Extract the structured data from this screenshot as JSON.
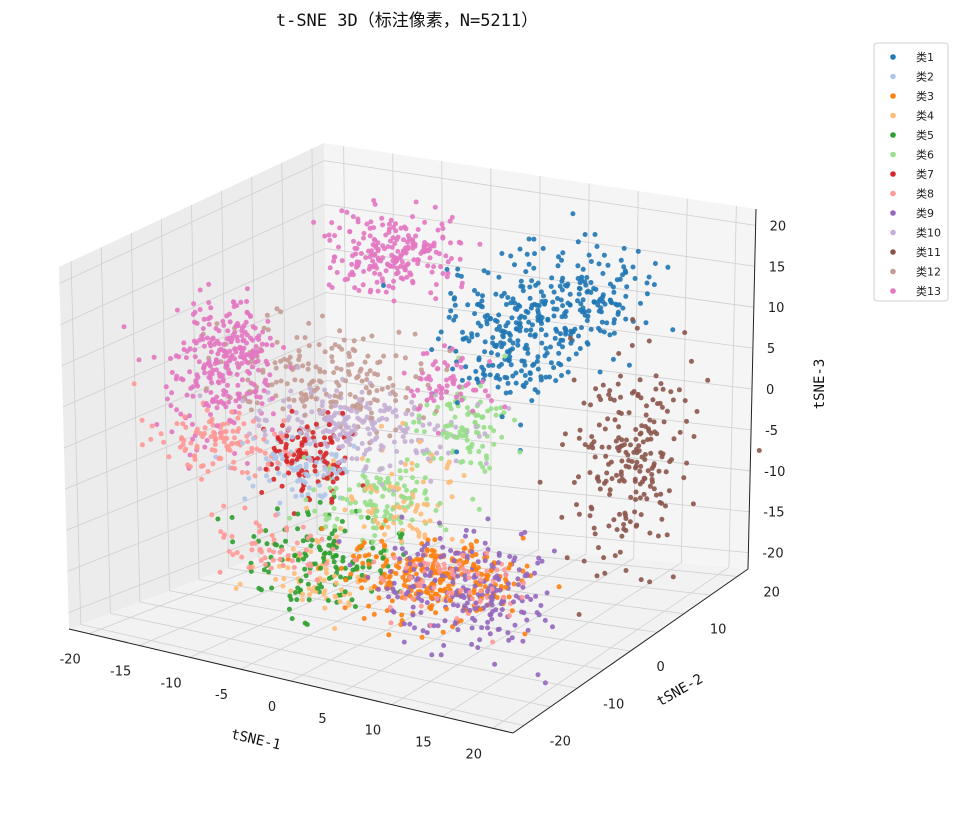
{
  "chart_data": {
    "type": "scatter",
    "projection": "3d",
    "title": "t-SNE 3D（标注像素，N=5211）",
    "xlabel": "tSNE-1",
    "ylabel": "tSNE-2",
    "zlabel": "tSNE-3",
    "xlim": [
      -22,
      22
    ],
    "ylim": [
      -22,
      22
    ],
    "zlim": [
      -22,
      22
    ],
    "xticks": [
      -20,
      -15,
      -10,
      -5,
      0,
      5,
      10,
      15,
      20
    ],
    "yticks": [
      -20,
      -10,
      0,
      10,
      20
    ],
    "zticks": [
      -20,
      -15,
      -10,
      -5,
      0,
      5,
      10,
      15,
      20
    ],
    "grid": true,
    "legend_position": "upper-right-outside",
    "series": [
      {
        "name": "类1",
        "color": "#1f77b4",
        "clusters": [
          [
            4,
            10,
            8,
            3,
            3,
            4,
            240
          ],
          [
            10,
            12,
            13,
            3,
            3,
            3,
            160
          ]
        ]
      },
      {
        "name": "类2",
        "color": "#aec7e8",
        "clusters": [
          [
            -10,
            -2,
            -6,
            3,
            2,
            2,
            80
          ]
        ]
      },
      {
        "name": "类3",
        "color": "#ff7f0e",
        "clusters": [
          [
            6,
            -7,
            -14,
            4,
            3,
            2,
            260
          ]
        ]
      },
      {
        "name": "类4",
        "color": "#ffbb78",
        "clusters": [
          [
            -1,
            -2,
            -8,
            3,
            3,
            3,
            80
          ],
          [
            -5,
            -7,
            -17,
            3,
            2,
            2,
            60
          ]
        ]
      },
      {
        "name": "类5",
        "color": "#2ca02c",
        "clusters": [
          [
            -6,
            -6,
            -15,
            3,
            3,
            3,
            140
          ]
        ]
      },
      {
        "name": "类6",
        "color": "#98df8a",
        "clusters": [
          [
            -3,
            -1,
            -9,
            3,
            3,
            2,
            120
          ],
          [
            2,
            6,
            -1,
            2,
            2,
            3,
            100
          ]
        ]
      },
      {
        "name": "类7",
        "color": "#d62728",
        "clusters": [
          [
            -10,
            -1,
            -5,
            2,
            2,
            2,
            110
          ]
        ]
      },
      {
        "name": "类8",
        "color": "#ff9896",
        "clusters": [
          [
            -17,
            -4,
            -4,
            3,
            2,
            2,
            120
          ],
          [
            10,
            -12,
            -12,
            4,
            2,
            2,
            70
          ],
          [
            -9,
            -9,
            -13,
            3,
            2,
            2,
            60
          ]
        ]
      },
      {
        "name": "类9",
        "color": "#9467bd",
        "clusters": [
          [
            11,
            -10,
            -13,
            4,
            3,
            3,
            240
          ]
        ]
      },
      {
        "name": "类10",
        "color": "#c5b0d5",
        "clusters": [
          [
            -7,
            2,
            -2,
            5,
            3,
            2,
            220
          ]
        ]
      },
      {
        "name": "类11",
        "color": "#8c564b",
        "clusters": [
          [
            19,
            5,
            -2,
            2,
            4,
            6,
            220
          ]
        ]
      },
      {
        "name": "类12",
        "color": "#c49c94",
        "clusters": [
          [
            -12,
            5,
            2,
            5,
            2,
            3,
            200
          ]
        ]
      },
      {
        "name": "类13",
        "color": "#e377c2",
        "clusters": [
          [
            -10,
            14,
            14,
            3,
            3,
            2,
            220
          ],
          [
            -19,
            -1,
            3,
            2,
            3,
            4,
            200
          ],
          [
            -19,
            2,
            6,
            2,
            2,
            2,
            80
          ],
          [
            2,
            2,
            5,
            2,
            2,
            2,
            60
          ]
        ]
      }
    ]
  }
}
